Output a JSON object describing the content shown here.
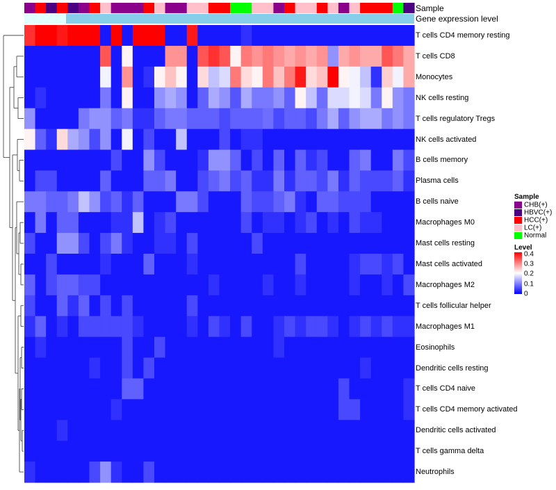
{
  "chart_data": {
    "type": "heatmap",
    "title": "",
    "column_annotations": [
      {
        "name": "Sample"
      },
      {
        "name": "Gene expression level"
      }
    ],
    "sample_groups": {
      "CHB(+)": "#8b008b",
      "HBVC(+)": "#4b0082",
      "HCC(+)": "#ff0000",
      "LC(+)": "#ffc0cb",
      "Normal": "#00ff00"
    },
    "sample_group_per_column": [
      "CHB(+)",
      "HCC(+)",
      "HBVC(+)",
      "HCC(+)",
      "HBVC(+)",
      "CHB(+)",
      "HCC(+)",
      "LC(+)",
      "CHB(+)",
      "CHB(+)",
      "CHB(+)",
      "HCC(+)",
      "LC(+)",
      "CHB(+)",
      "CHB(+)",
      "LC(+)",
      "LC(+)",
      "HCC(+)",
      "HCC(+)",
      "Normal",
      "Normal",
      "LC(+)",
      "LC(+)",
      "CHB(+)",
      "HCC(+)",
      "LC(+)",
      "LC(+)",
      "HCC(+)",
      "LC(+)",
      "CHB(+)",
      "LC(+)",
      "HCC(+)",
      "HCC(+)",
      "HCC(+)",
      "Normal",
      "HBVC(+)"
    ],
    "gene_expression_level_colors": [
      "#87ceeb",
      "#e0ffff"
    ],
    "rows": [
      "T cells CD4 memory resting",
      "T cells CD8",
      "Monocytes",
      "NK cells resting",
      "T cells regulatory  Tregs",
      "NK cells activated",
      "B cells memory",
      "Plasma cells",
      "B cells naive",
      "Macrophages M0",
      "Mast cells resting",
      "Mast cells activated",
      "Macrophages M2",
      "T cells follicular helper",
      "Macrophages M1",
      "Eosinophils",
      "Dendritic cells resting",
      "T cells CD4 naive",
      "T cells CD4 memory activated",
      "Dendritic cells activated",
      "T cells gamma delta",
      "Neutrophils"
    ],
    "values": [
      [
        0.38,
        0.42,
        0.42,
        0.4,
        0.42,
        0.42,
        0.42,
        0.02,
        0.42,
        0.02,
        0.42,
        0.42,
        0.42,
        0.02,
        0.02,
        0.4,
        0.02,
        0.02,
        0.02,
        0.02,
        0.04,
        0.02,
        0.02,
        0.02,
        0.02,
        0.02,
        0.02,
        0.02,
        0.02,
        0.02,
        0.02,
        0.02,
        0.02,
        0.02,
        0.02,
        0.02
      ],
      [
        0.02,
        0.02,
        0.02,
        0.02,
        0.02,
        0.02,
        0.02,
        0.35,
        0.02,
        0.22,
        0.02,
        0.02,
        0.02,
        0.3,
        0.3,
        0.02,
        0.35,
        0.38,
        0.35,
        0.22,
        0.32,
        0.3,
        0.32,
        0.3,
        0.28,
        0.3,
        0.28,
        0.3,
        0.12,
        0.28,
        0.3,
        0.28,
        0.28,
        0.35,
        0.32,
        0.28
      ],
      [
        0.02,
        0.02,
        0.02,
        0.02,
        0.02,
        0.02,
        0.02,
        0.2,
        0.02,
        0.3,
        0.02,
        0.04,
        0.22,
        0.26,
        0.22,
        0.02,
        0.24,
        0.16,
        0.18,
        0.32,
        0.24,
        0.22,
        0.32,
        0.26,
        0.32,
        0.4,
        0.24,
        0.26,
        0.42,
        0.22,
        0.2,
        0.16,
        0.04,
        0.25,
        0.2,
        0.28
      ],
      [
        0.02,
        0.04,
        0.02,
        0.02,
        0.02,
        0.02,
        0.02,
        0.1,
        0.02,
        0.22,
        0.02,
        0.02,
        0.12,
        0.14,
        0.12,
        0.02,
        0.08,
        0.14,
        0.12,
        0.07,
        0.14,
        0.1,
        0.1,
        0.12,
        0.08,
        0.22,
        0.16,
        0.09,
        0.18,
        0.18,
        0.2,
        0.18,
        0.1,
        0.22,
        0.12,
        0.1
      ],
      [
        0.12,
        0.02,
        0.02,
        0.02,
        0.02,
        0.1,
        0.12,
        0.12,
        0.08,
        0.1,
        0.04,
        0.04,
        0.08,
        0.1,
        0.1,
        0.08,
        0.08,
        0.08,
        0.06,
        0.08,
        0.08,
        0.08,
        0.09,
        0.06,
        0.08,
        0.08,
        0.06,
        0.1,
        0.14,
        0.08,
        0.12,
        0.14,
        0.14,
        0.1,
        0.12,
        0.1
      ],
      [
        0.22,
        0.08,
        0.04,
        0.24,
        0.14,
        0.12,
        0.06,
        0.12,
        0.02,
        0.2,
        0.02,
        0.06,
        0.02,
        0.02,
        0.16,
        0.02,
        0.02,
        0.02,
        0.06,
        0.02,
        0.04,
        0.04,
        0.02,
        0.02,
        0.02,
        0.02,
        0.02,
        0.02,
        0.02,
        0.02,
        0.02,
        0.02,
        0.02,
        0.02,
        0.02,
        0.02
      ],
      [
        0.02,
        0.02,
        0.02,
        0.02,
        0.02,
        0.02,
        0.02,
        0.02,
        0.06,
        0.02,
        0.02,
        0.12,
        0.06,
        0.02,
        0.02,
        0.02,
        0.04,
        0.12,
        0.12,
        0.08,
        0.02,
        0.06,
        0.02,
        0.08,
        0.02,
        0.08,
        0.04,
        0.06,
        0.02,
        0.02,
        0.08,
        0.1,
        0.02,
        0.02,
        0.1,
        0.06
      ],
      [
        0.02,
        0.06,
        0.06,
        0.02,
        0.02,
        0.02,
        0.02,
        0.08,
        0.02,
        0.02,
        0.02,
        0.08,
        0.08,
        0.1,
        0.02,
        0.02,
        0.06,
        0.08,
        0.1,
        0.06,
        0.08,
        0.04,
        0.04,
        0.1,
        0.04,
        0.08,
        0.08,
        0.06,
        0.1,
        0.04,
        0.08,
        0.06,
        0.06,
        0.06,
        0.08,
        0.04
      ],
      [
        0.1,
        0.1,
        0.08,
        0.08,
        0.1,
        0.16,
        0.12,
        0.06,
        0.08,
        0.04,
        0.08,
        0.02,
        0.02,
        0.02,
        0.1,
        0.1,
        0.06,
        0.02,
        0.02,
        0.02,
        0.08,
        0.06,
        0.06,
        0.08,
        0.1,
        0.04,
        0.02,
        0.08,
        0.08,
        0.06,
        0.06,
        0.06,
        0.02,
        0.02,
        0.02,
        0.02
      ],
      [
        0.02,
        0.1,
        0.02,
        0.08,
        0.08,
        0.02,
        0.02,
        0.02,
        0.04,
        0.04,
        0.16,
        0.02,
        0.04,
        0.06,
        0.02,
        0.02,
        0.02,
        0.02,
        0.02,
        0.02,
        0.06,
        0.02,
        0.04,
        0.04,
        0.02,
        0.04,
        0.06,
        0.02,
        0.04,
        0.02,
        0.06,
        0.04,
        0.04,
        0.02,
        0.02,
        0.02
      ],
      [
        0.06,
        0.02,
        0.02,
        0.12,
        0.12,
        0.06,
        0.02,
        0.06,
        0.1,
        0.04,
        0.02,
        0.02,
        0.04,
        0.04,
        0.02,
        0.06,
        0.02,
        0.02,
        0.02,
        0.02,
        0.02,
        0.06,
        0.02,
        0.02,
        0.02,
        0.02,
        0.02,
        0.02,
        0.02,
        0.02,
        0.02,
        0.02,
        0.02,
        0.02,
        0.02,
        0.02
      ],
      [
        0.02,
        0.02,
        0.06,
        0.02,
        0.02,
        0.02,
        0.02,
        0.04,
        0.02,
        0.02,
        0.02,
        0.08,
        0.02,
        0.02,
        0.02,
        0.04,
        0.02,
        0.02,
        0.02,
        0.02,
        0.02,
        0.02,
        0.02,
        0.02,
        0.02,
        0.06,
        0.02,
        0.02,
        0.02,
        0.02,
        0.04,
        0.06,
        0.06,
        0.04,
        0.06,
        0.02
      ],
      [
        0.08,
        0.02,
        0.06,
        0.08,
        0.08,
        0.06,
        0.06,
        0.02,
        0.02,
        0.02,
        0.02,
        0.02,
        0.02,
        0.02,
        0.02,
        0.02,
        0.02,
        0.04,
        0.02,
        0.02,
        0.02,
        0.02,
        0.04,
        0.02,
        0.02,
        0.04,
        0.02,
        0.02,
        0.02,
        0.02,
        0.04,
        0.02,
        0.02,
        0.04,
        0.02,
        0.06
      ],
      [
        0.06,
        0.02,
        0.02,
        0.08,
        0.04,
        0.08,
        0.02,
        0.06,
        0.02,
        0.06,
        0.02,
        0.02,
        0.02,
        0.02,
        0.02,
        0.06,
        0.02,
        0.02,
        0.02,
        0.02,
        0.02,
        0.02,
        0.02,
        0.02,
        0.02,
        0.02,
        0.02,
        0.02,
        0.02,
        0.02,
        0.02,
        0.02,
        0.02,
        0.02,
        0.02,
        0.02
      ],
      [
        0.04,
        0.08,
        0.02,
        0.04,
        0.02,
        0.06,
        0.06,
        0.06,
        0.06,
        0.06,
        0.04,
        0.02,
        0.02,
        0.02,
        0.02,
        0.04,
        0.02,
        0.06,
        0.04,
        0.02,
        0.06,
        0.02,
        0.02,
        0.04,
        0.06,
        0.04,
        0.06,
        0.06,
        0.04,
        0.02,
        0.04,
        0.06,
        0.04,
        0.06,
        0.04,
        0.04
      ],
      [
        0.02,
        0.04,
        0.02,
        0.02,
        0.02,
        0.02,
        0.02,
        0.02,
        0.02,
        0.06,
        0.02,
        0.02,
        0.06,
        0.02,
        0.02,
        0.02,
        0.02,
        0.02,
        0.02,
        0.02,
        0.02,
        0.02,
        0.02,
        0.04,
        0.02,
        0.02,
        0.02,
        0.02,
        0.02,
        0.02,
        0.02,
        0.02,
        0.02,
        0.02,
        0.02,
        0.02
      ],
      [
        0.02,
        0.02,
        0.02,
        0.02,
        0.02,
        0.02,
        0.04,
        0.02,
        0.02,
        0.06,
        0.02,
        0.06,
        0.02,
        0.02,
        0.02,
        0.02,
        0.02,
        0.02,
        0.02,
        0.02,
        0.02,
        0.02,
        0.02,
        0.02,
        0.02,
        0.02,
        0.02,
        0.02,
        0.02,
        0.02,
        0.02,
        0.04,
        0.02,
        0.02,
        0.02,
        0.02
      ],
      [
        0.02,
        0.02,
        0.02,
        0.02,
        0.02,
        0.02,
        0.02,
        0.02,
        0.02,
        0.08,
        0.08,
        0.02,
        0.02,
        0.02,
        0.02,
        0.02,
        0.02,
        0.02,
        0.02,
        0.02,
        0.02,
        0.02,
        0.02,
        0.02,
        0.02,
        0.02,
        0.02,
        0.02,
        0.02,
        0.06,
        0.02,
        0.02,
        0.02,
        0.02,
        0.02,
        0.04
      ],
      [
        0.02,
        0.02,
        0.02,
        0.02,
        0.02,
        0.02,
        0.02,
        0.02,
        0.04,
        0.02,
        0.02,
        0.02,
        0.02,
        0.02,
        0.02,
        0.02,
        0.02,
        0.02,
        0.02,
        0.02,
        0.02,
        0.02,
        0.02,
        0.02,
        0.02,
        0.02,
        0.02,
        0.02,
        0.02,
        0.06,
        0.06,
        0.02,
        0.02,
        0.02,
        0.02,
        0.04
      ],
      [
        0.02,
        0.02,
        0.02,
        0.04,
        0.02,
        0.02,
        0.02,
        0.02,
        0.02,
        0.02,
        0.02,
        0.02,
        0.02,
        0.02,
        0.02,
        0.02,
        0.02,
        0.02,
        0.02,
        0.02,
        0.02,
        0.02,
        0.02,
        0.02,
        0.02,
        0.02,
        0.02,
        0.02,
        0.02,
        0.02,
        0.02,
        0.02,
        0.02,
        0.02,
        0.02,
        0.02
      ],
      [
        0.02,
        0.02,
        0.02,
        0.02,
        0.02,
        0.02,
        0.02,
        0.02,
        0.02,
        0.02,
        0.02,
        0.02,
        0.02,
        0.02,
        0.02,
        0.02,
        0.02,
        0.02,
        0.02,
        0.02,
        0.02,
        0.02,
        0.02,
        0.02,
        0.02,
        0.02,
        0.02,
        0.02,
        0.02,
        0.02,
        0.02,
        0.02,
        0.02,
        0.02,
        0.02,
        0.02
      ],
      [
        0.04,
        0.02,
        0.02,
        0.02,
        0.02,
        0.02,
        0.06,
        0.12,
        0.04,
        0.02,
        0.02,
        0.06,
        0.02,
        0.02,
        0.02,
        0.02,
        0.02,
        0.02,
        0.02,
        0.02,
        0.02,
        0.02,
        0.02,
        0.02,
        0.02,
        0.02,
        0.02,
        0.02,
        0.02,
        0.02,
        0.02,
        0.02,
        0.02,
        0.02,
        0.02,
        0.02
      ]
    ],
    "color_scale": {
      "min": 0,
      "max": 0.42,
      "low": "#0000ff",
      "mid": "#ffffff",
      "high": "#ff0000"
    },
    "legends": [
      {
        "title": "Sample",
        "entries": [
          "CHB(+)",
          "HBVC(+)",
          "HCC(+)",
          "LC(+)",
          "Normal"
        ]
      },
      {
        "title": "Level",
        "ticks": [
          "0.4",
          "0.3",
          "0.2",
          "0.1",
          "0"
        ]
      }
    ]
  }
}
